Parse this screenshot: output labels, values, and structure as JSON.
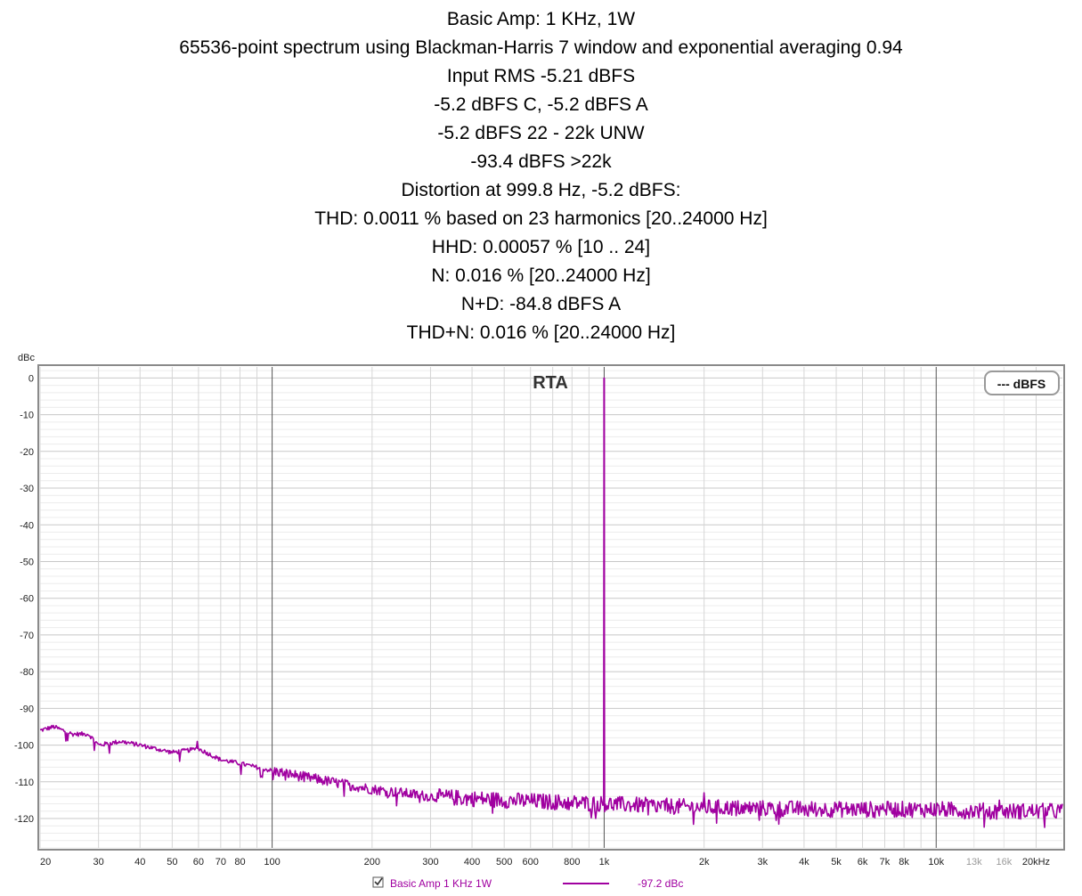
{
  "header": {
    "lines": [
      "Basic Amp: 1 KHz, 1W",
      "65536-point spectrum using Blackman-Harris 7 window and exponential averaging 0.94",
      "Input RMS -5.21 dBFS",
      "-5.2 dBFS C, -5.2 dBFS A",
      "-5.2 dBFS 22 - 22k UNW",
      "-93.4 dBFS >22k",
      "Distortion at 999.8 Hz, -5.2 dBFS:",
      "THD: 0.0011 % based on 23 harmonics [20..24000 Hz]",
      "HHD: 0.00057 % [10 .. 24]",
      "N: 0.016 % [20..24000 Hz]",
      "N+D: -84.8 dBFS A",
      "THD+N: 0.016 % [20..24000 Hz]"
    ]
  },
  "chart_data": {
    "type": "line",
    "title": "RTA",
    "ylabel": "dBc",
    "x_scale": "log",
    "xlim": [
      20,
      24000
    ],
    "ylim": [
      -128,
      3
    ],
    "y_ticks": [
      0,
      -10,
      -20,
      -30,
      -40,
      -50,
      -60,
      -70,
      -80,
      -90,
      -100,
      -110,
      -120
    ],
    "x_ticks": [
      {
        "value": 20,
        "label": "20"
      },
      {
        "value": 30,
        "label": "30"
      },
      {
        "value": 40,
        "label": "40"
      },
      {
        "value": 50,
        "label": "50"
      },
      {
        "value": 60,
        "label": "60"
      },
      {
        "value": 70,
        "label": "70"
      },
      {
        "value": 80,
        "label": "80"
      },
      {
        "value": 100,
        "label": "100"
      },
      {
        "value": 200,
        "label": "200"
      },
      {
        "value": 300,
        "label": "300"
      },
      {
        "value": 400,
        "label": "400"
      },
      {
        "value": 500,
        "label": "500"
      },
      {
        "value": 600,
        "label": "600"
      },
      {
        "value": 800,
        "label": "800"
      },
      {
        "value": 1000,
        "label": "1k"
      },
      {
        "value": 2000,
        "label": "2k"
      },
      {
        "value": 3000,
        "label": "3k"
      },
      {
        "value": 4000,
        "label": "4k"
      },
      {
        "value": 5000,
        "label": "5k"
      },
      {
        "value": 6000,
        "label": "6k"
      },
      {
        "value": 7000,
        "label": "7k"
      },
      {
        "value": 8000,
        "label": "8k"
      },
      {
        "value": 10000,
        "label": "10k"
      },
      {
        "value": 13000,
        "label": "13k",
        "dim": true
      },
      {
        "value": 16000,
        "label": "16k",
        "dim": true
      },
      {
        "value": 20000,
        "label": "20kHz"
      }
    ],
    "grid": true,
    "legend": {
      "label": "--- dBFS",
      "position": "top-right"
    },
    "series": [
      {
        "name": "Basic Amp 1 KHz 1W",
        "color": "#a000a0",
        "value_label": "-97.2 dBc",
        "floor": [
          [
            20,
            -96
          ],
          [
            22,
            -95
          ],
          [
            25,
            -97
          ],
          [
            28,
            -97
          ],
          [
            30,
            -100
          ],
          [
            35,
            -99
          ],
          [
            40,
            -100
          ],
          [
            50,
            -102
          ],
          [
            60,
            -101
          ],
          [
            70,
            -104
          ],
          [
            80,
            -105
          ],
          [
            100,
            -107
          ],
          [
            150,
            -110
          ],
          [
            200,
            -112
          ],
          [
            300,
            -114
          ],
          [
            500,
            -115
          ],
          [
            1000,
            -116
          ],
          [
            2000,
            -117
          ],
          [
            5000,
            -117.5
          ],
          [
            10000,
            -117.5
          ],
          [
            15000,
            -118
          ],
          [
            24000,
            -118
          ]
        ],
        "peaks": [
          [
            59.5,
            -99
          ],
          [
            999.8,
            0
          ],
          [
            1999.6,
            -113
          ],
          [
            2999.4,
            -116
          ],
          [
            4999,
            -116
          ],
          [
            6998.6,
            -118
          ],
          [
            15500,
            -115
          ]
        ]
      }
    ]
  }
}
